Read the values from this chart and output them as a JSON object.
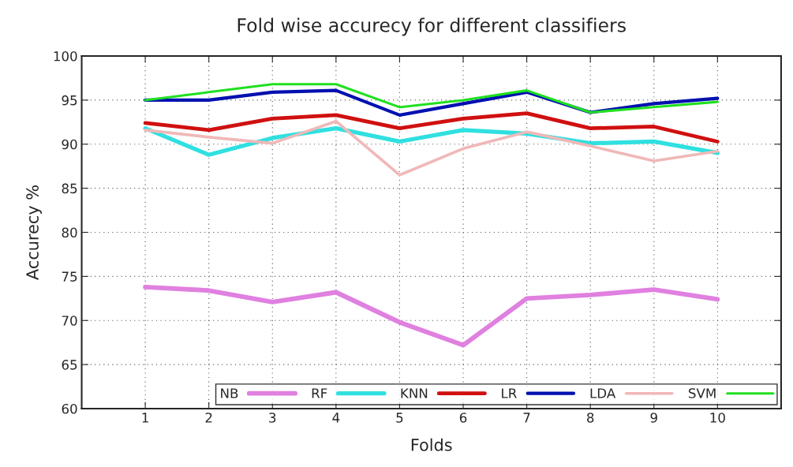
{
  "chart_data": {
    "type": "line",
    "title": "Fold wise accurecy for different classifiers",
    "xlabel": "Folds",
    "ylabel": "Accurecy %",
    "x": [
      1,
      2,
      3,
      4,
      5,
      6,
      7,
      8,
      9,
      10
    ],
    "series": [
      {
        "name": "NB",
        "color": "#e080e0",
        "values": [
          73.8,
          73.4,
          72.1,
          73.2,
          69.8,
          67.2,
          72.5,
          72.9,
          73.5,
          72.4
        ]
      },
      {
        "name": "RF",
        "color": "#30e0e0",
        "values": [
          91.8,
          88.8,
          90.7,
          91.8,
          90.3,
          91.6,
          91.2,
          90.1,
          90.3,
          89.0
        ]
      },
      {
        "name": "KNN",
        "color": "#d01010",
        "values": [
          92.4,
          91.6,
          92.9,
          93.3,
          91.8,
          92.9,
          93.5,
          91.8,
          92.0,
          90.3
        ]
      },
      {
        "name": "LR",
        "color": "#0010b0",
        "values": [
          95.0,
          95.0,
          95.9,
          96.1,
          93.3,
          94.6,
          95.9,
          93.6,
          94.6,
          95.2
        ]
      },
      {
        "name": "LDA",
        "color": "#f0b8b8",
        "values": [
          91.6,
          90.8,
          90.1,
          92.6,
          86.5,
          89.5,
          91.4,
          89.8,
          88.1,
          89.2
        ]
      },
      {
        "name": "SVM",
        "color": "#20e020",
        "values": [
          95.0,
          95.9,
          96.8,
          96.8,
          94.2,
          95.0,
          96.1,
          93.6,
          94.2,
          94.8
        ]
      }
    ],
    "xlim": [
      0,
      11
    ],
    "xticks": [
      1,
      2,
      3,
      4,
      5,
      6,
      7,
      8,
      9,
      10
    ],
    "ylim": [
      60,
      100
    ],
    "yticks": [
      60,
      65,
      70,
      75,
      80,
      85,
      90,
      95,
      100
    ],
    "grid": true,
    "legend": "bottom right",
    "line_style": "solid",
    "marker": "none"
  }
}
